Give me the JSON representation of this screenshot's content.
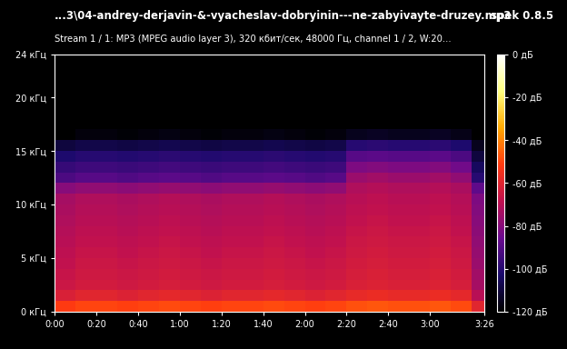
{
  "chart_data": {
    "type": "heatmap",
    "title": "...3\\04-andrey-derjavin-&-vyacheslav-dobryinin---ne-zabyivayte-druzey.mp3",
    "annotation": "spek 0.8.5",
    "subtitle": "Stream 1 / 1: MP3 (MPEG audio layer 3), 320 кбит/сек, 48000 Гц, channel 1 / 2, W:20...",
    "xlim": [
      0,
      206
    ],
    "xticks": [
      {
        "value": 0,
        "label": "0:00"
      },
      {
        "value": 20,
        "label": "0:20"
      },
      {
        "value": 40,
        "label": "0:40"
      },
      {
        "value": 60,
        "label": "1:00"
      },
      {
        "value": 80,
        "label": "1:20"
      },
      {
        "value": 100,
        "label": "1:40"
      },
      {
        "value": 120,
        "label": "2:00"
      },
      {
        "value": 140,
        "label": "2:20"
      },
      {
        "value": 160,
        "label": "2:40"
      },
      {
        "value": 180,
        "label": "3:00"
      },
      {
        "value": 206,
        "label": "3:26"
      }
    ],
    "ylim": [
      0,
      24
    ],
    "yticks": [
      {
        "value": 0,
        "label": "0 кГц"
      },
      {
        "value": 5,
        "label": "5 кГц"
      },
      {
        "value": 10,
        "label": "10 кГц"
      },
      {
        "value": 15,
        "label": "15 кГц"
      },
      {
        "value": 20,
        "label": "20 кГц"
      },
      {
        "value": 24,
        "label": "24 кГц"
      }
    ],
    "time_bins": [
      0,
      10,
      20,
      30,
      40,
      50,
      60,
      70,
      80,
      90,
      100,
      110,
      120,
      130,
      140,
      150,
      160,
      170,
      180,
      190,
      200,
      206
    ],
    "freq_bins": [
      0,
      1,
      2,
      3,
      4,
      5,
      6,
      7,
      8,
      9,
      10,
      11,
      12,
      13,
      14,
      15,
      16,
      17,
      18,
      19,
      20,
      21,
      22,
      23,
      24
    ],
    "cells": [
      [
        -52,
        -50,
        -50,
        -51,
        -50,
        -49,
        -50,
        -51,
        -50,
        -50,
        -49,
        -50,
        -51,
        -50,
        -48,
        -47,
        -48,
        -48,
        -47,
        -49,
        -60
      ],
      [
        -62,
        -60,
        -60,
        -61,
        -60,
        -59,
        -60,
        -61,
        -60,
        -60,
        -59,
        -60,
        -61,
        -60,
        -58,
        -57,
        -58,
        -58,
        -57,
        -59,
        -70
      ],
      [
        -66,
        -64,
        -64,
        -65,
        -64,
        -63,
        -64,
        -65,
        -64,
        -64,
        -63,
        -64,
        -65,
        -64,
        -62,
        -61,
        -62,
        -62,
        -61,
        -63,
        -74
      ],
      [
        -67,
        -65,
        -65,
        -66,
        -65,
        -64,
        -65,
        -66,
        -65,
        -65,
        -64,
        -65,
        -66,
        -65,
        -63,
        -62,
        -63,
        -63,
        -62,
        -64,
        -75
      ],
      [
        -68,
        -66,
        -66,
        -67,
        -66,
        -65,
        -66,
        -67,
        -66,
        -66,
        -65,
        -66,
        -67,
        -66,
        -64,
        -63,
        -64,
        -64,
        -63,
        -65,
        -76
      ],
      [
        -69,
        -67,
        -67,
        -68,
        -67,
        -66,
        -67,
        -68,
        -67,
        -67,
        -66,
        -67,
        -68,
        -67,
        -65,
        -64,
        -65,
        -65,
        -64,
        -66,
        -77
      ],
      [
        -70,
        -68,
        -68,
        -69,
        -68,
        -67,
        -68,
        -69,
        -68,
        -68,
        -67,
        -68,
        -69,
        -68,
        -66,
        -65,
        -66,
        -66,
        -65,
        -67,
        -78
      ],
      [
        -71,
        -69,
        -69,
        -70,
        -69,
        -68,
        -69,
        -70,
        -69,
        -69,
        -68,
        -69,
        -70,
        -69,
        -67,
        -66,
        -67,
        -67,
        -66,
        -68,
        -79
      ],
      [
        -72,
        -70,
        -70,
        -71,
        -70,
        -69,
        -70,
        -71,
        -70,
        -70,
        -69,
        -70,
        -71,
        -70,
        -68,
        -67,
        -68,
        -68,
        -67,
        -69,
        -80
      ],
      [
        -73,
        -71,
        -71,
        -72,
        -71,
        -70,
        -71,
        -72,
        -71,
        -71,
        -70,
        -71,
        -72,
        -71,
        -69,
        -68,
        -69,
        -69,
        -68,
        -70,
        -81
      ],
      [
        -74,
        -72,
        -72,
        -73,
        -72,
        -71,
        -72,
        -73,
        -72,
        -72,
        -71,
        -72,
        -73,
        -72,
        -70,
        -69,
        -70,
        -70,
        -69,
        -71,
        -82
      ],
      [
        -80,
        -78,
        -78,
        -79,
        -78,
        -77,
        -78,
        -79,
        -78,
        -78,
        -77,
        -78,
        -79,
        -78,
        -72,
        -71,
        -72,
        -72,
        -71,
        -73,
        -88
      ],
      [
        -92,
        -90,
        -90,
        -91,
        -90,
        -89,
        -90,
        -91,
        -90,
        -90,
        -89,
        -90,
        -91,
        -90,
        -76,
        -75,
        -76,
        -76,
        -75,
        -78,
        -100
      ],
      [
        -97,
        -95,
        -95,
        -96,
        -95,
        -94,
        -95,
        -96,
        -95,
        -95,
        -94,
        -95,
        -96,
        -95,
        -82,
        -81,
        -82,
        -82,
        -81,
        -84,
        -105
      ],
      [
        -102,
        -100,
        -100,
        -101,
        -100,
        -99,
        -100,
        -101,
        -100,
        -100,
        -99,
        -100,
        -101,
        -100,
        -90,
        -89,
        -90,
        -90,
        -89,
        -92,
        -110
      ],
      [
        -110,
        -108,
        -108,
        -109,
        -108,
        -107,
        -108,
        -109,
        -108,
        -108,
        -107,
        -108,
        -109,
        -108,
        -100,
        -99,
        -100,
        -100,
        -99,
        -102,
        -115
      ],
      [
        -120,
        -118,
        -118,
        -119,
        -118,
        -117,
        -118,
        -119,
        -118,
        -118,
        -117,
        -118,
        -119,
        -118,
        -115,
        -114,
        -115,
        -115,
        -114,
        -116,
        -120
      ],
      [
        -120,
        -120,
        -120,
        -120,
        -120,
        -120,
        -120,
        -120,
        -120,
        -120,
        -120,
        -120,
        -120,
        -120,
        -120,
        -120,
        -120,
        -120,
        -120,
        -120,
        -120
      ],
      [
        -120,
        -120,
        -120,
        -120,
        -120,
        -120,
        -120,
        -120,
        -120,
        -120,
        -120,
        -120,
        -120,
        -120,
        -120,
        -120,
        -120,
        -120,
        -120,
        -120,
        -120
      ],
      [
        -120,
        -120,
        -120,
        -120,
        -120,
        -120,
        -120,
        -120,
        -120,
        -120,
        -120,
        -120,
        -120,
        -120,
        -120,
        -120,
        -120,
        -120,
        -120,
        -120,
        -120
      ],
      [
        -120,
        -120,
        -120,
        -120,
        -120,
        -120,
        -120,
        -120,
        -120,
        -120,
        -120,
        -120,
        -120,
        -120,
        -120,
        -120,
        -120,
        -120,
        -120,
        -120,
        -120
      ],
      [
        -120,
        -120,
        -120,
        -120,
        -120,
        -120,
        -120,
        -120,
        -120,
        -120,
        -120,
        -120,
        -120,
        -120,
        -120,
        -120,
        -120,
        -120,
        -120,
        -120,
        -120
      ],
      [
        -120,
        -120,
        -120,
        -120,
        -120,
        -120,
        -120,
        -120,
        -120,
        -120,
        -120,
        -120,
        -120,
        -120,
        -120,
        -120,
        -120,
        -120,
        -120,
        -120,
        -120
      ],
      [
        -120,
        -120,
        -120,
        -120,
        -120,
        -120,
        -120,
        -120,
        -120,
        -120,
        -120,
        -120,
        -120,
        -120,
        -120,
        -120,
        -120,
        -120,
        -120,
        -120,
        -120
      ]
    ],
    "colorbar": {
      "range": [
        -120,
        0
      ],
      "ticks": [
        {
          "value": 0,
          "label": "0 дБ"
        },
        {
          "value": -20,
          "label": "-20 дБ"
        },
        {
          "value": -40,
          "label": "-40 дБ"
        },
        {
          "value": -60,
          "label": "-60 дБ"
        },
        {
          "value": -80,
          "label": "-80 дБ"
        },
        {
          "value": -100,
          "label": "-100 дБ"
        },
        {
          "value": -120,
          "label": "-120 дБ"
        }
      ]
    }
  }
}
